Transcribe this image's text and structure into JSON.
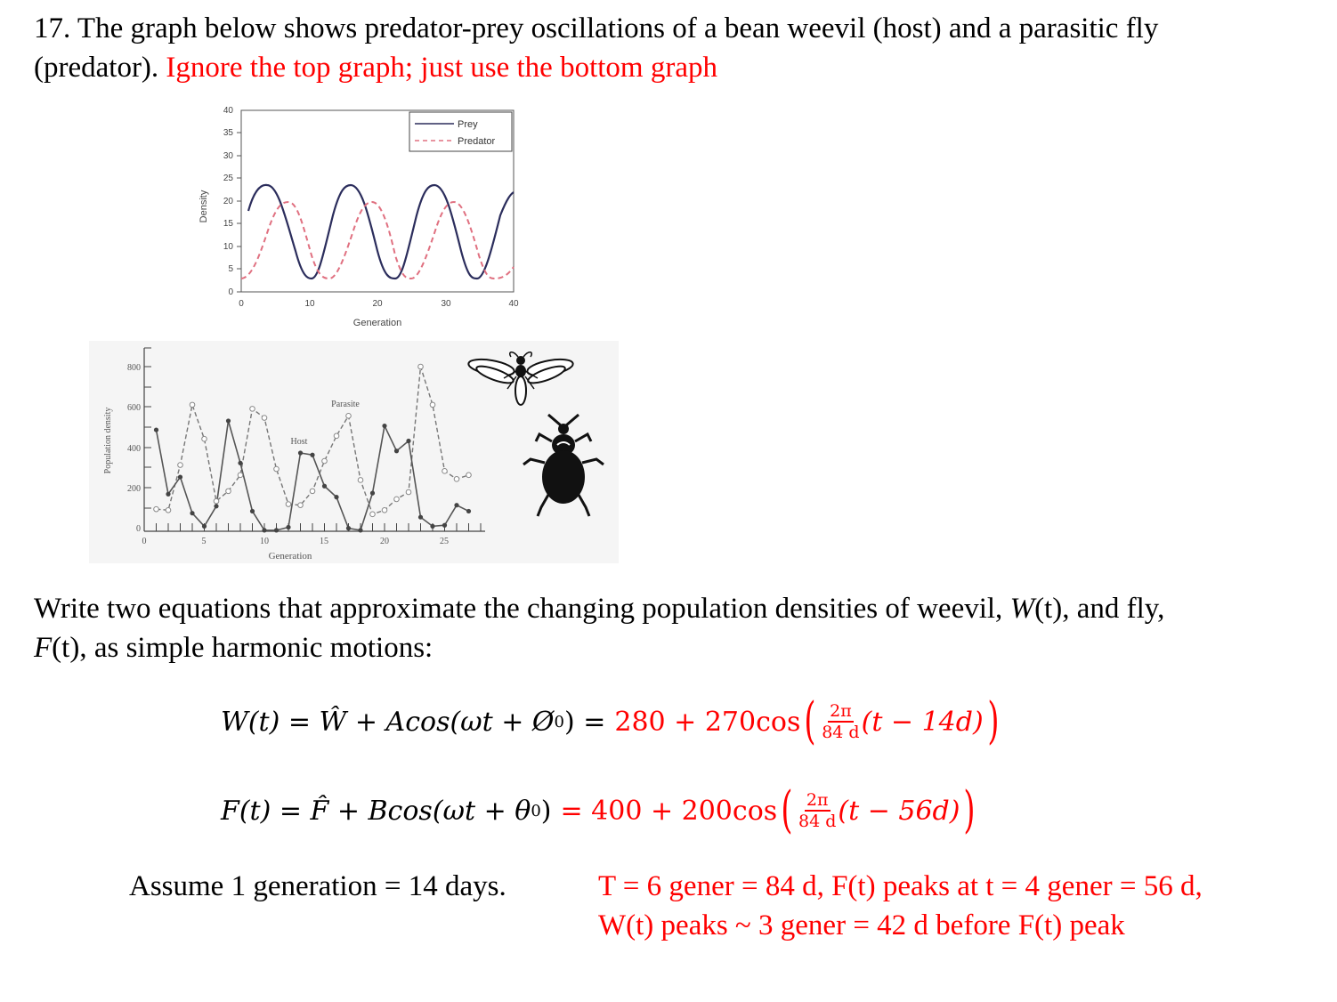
{
  "question": {
    "number": "17.",
    "line1": "The graph below shows predator-prey oscillations of a bean weevil (host) and a parasitic fly",
    "line2_black": "(predator).",
    "line2_red": "Ignore the top graph; just use the bottom graph"
  },
  "prompt": {
    "line1_a": "Write two equations that approximate the changing population densities of weevil,",
    "line1_w": "W",
    "line1_t": "(t)",
    "line1_b": ", and fly,",
    "line2_f": "F",
    "line2_t": "(t)",
    "line2_b": ", as simple harmonic motions:"
  },
  "equations": {
    "w": {
      "lhs": "W(t) = Ŵ + Acos(ωt + Ø",
      "lhs_sub": "0",
      "lhs_close": ") =",
      "rhs_pre": "280 + 270cos",
      "frac_num": "2π",
      "frac_den": "84 d",
      "rhs_post": "(t − 14d)"
    },
    "f": {
      "lhs": "F(t) = F̂ + Bcos(ωt + θ",
      "lhs_sub": "0",
      "lhs_close": ")",
      "rhs_pre": "= 400 + 200cos",
      "frac_num": "2π",
      "frac_den": "84 d",
      "rhs_post": "(t − 56d)"
    }
  },
  "assumption": "Assume 1 generation = 14 days.",
  "answer_notes": {
    "line1": "T = 6 gener = 84 d, F(t) peaks at t = 4 gener = 56 d,",
    "line2": "W(t) peaks ~ 3 gener = 42 d before F(t) peak"
  },
  "colors": {
    "answer_red": "#ff0000",
    "prey_line": "#2b2d5c",
    "predator_line": "#e07080"
  },
  "chart_data": [
    {
      "type": "line",
      "title": "",
      "xlabel": "Generation",
      "ylabel": "Density",
      "xlim": [
        0,
        40
      ],
      "ylim": [
        0,
        40
      ],
      "xticks": [
        "0",
        "10",
        "20",
        "30",
        "40"
      ],
      "yticks": [
        "0",
        "5",
        "10",
        "15",
        "20",
        "25",
        "30",
        "35",
        "40"
      ],
      "legend": [
        "Prey",
        "Predator"
      ],
      "legend_position": "top-right",
      "series": [
        {
          "name": "Prey",
          "style": "solid",
          "x": [
            1,
            3,
            6,
            9.3,
            12.5,
            15.6,
            19,
            22,
            25,
            28.2,
            31.5,
            34.5,
            37.5,
            40
          ],
          "values": [
            17.8,
            22.7,
            12.8,
            2.9,
            12.8,
            22.7,
            12.8,
            2.9,
            12.8,
            22.7,
            12.8,
            2.9,
            12.8,
            21.8
          ]
        },
        {
          "name": "Predator",
          "style": "dashed",
          "x": [
            0.5,
            3.5,
            6.8,
            10,
            13.2,
            16.3,
            19.5,
            22.7,
            25.8,
            29,
            32.2,
            35.3,
            38.4,
            40
          ],
          "values": [
            3,
            10.5,
            19,
            10.5,
            2.9,
            10.5,
            19,
            10.5,
            2.9,
            10.5,
            19,
            10.5,
            2.9,
            5.5
          ]
        }
      ]
    },
    {
      "type": "line",
      "title": "",
      "xlabel": "Generation",
      "ylabel": "Population density",
      "xlim": [
        0,
        28
      ],
      "ylim": [
        0,
        900
      ],
      "xticks": [
        "0",
        "5",
        "10",
        "15",
        "20",
        "25"
      ],
      "yticks": [
        "0",
        "200",
        "400",
        "600",
        "800"
      ],
      "annotations": [
        "Parasite",
        "Host"
      ],
      "x": [
        1,
        2,
        3,
        4,
        5,
        6,
        7,
        8,
        9,
        10,
        11,
        12,
        13,
        14,
        15,
        16,
        17,
        18,
        19,
        20,
        21,
        22,
        23,
        24,
        25,
        26,
        27
      ],
      "series": [
        {
          "name": "Host",
          "style": "solid-filled-markers",
          "values": [
            505,
            185,
            270,
            90,
            25,
            125,
            550,
            340,
            100,
            5,
            5,
            20,
            390,
            380,
            225,
            170,
            15,
            5,
            190,
            525,
            400,
            450,
            70,
            25,
            30,
            130,
            100
          ]
        },
        {
          "name": "Parasite",
          "style": "dashed-open-markers",
          "values": [
            110,
            105,
            330,
            630,
            460,
            150,
            200,
            280,
            610,
            565,
            310,
            135,
            130,
            200,
            350,
            475,
            575,
            255,
            85,
            105,
            160,
            195,
            820,
            630,
            300,
            260,
            280
          ]
        }
      ]
    }
  ]
}
